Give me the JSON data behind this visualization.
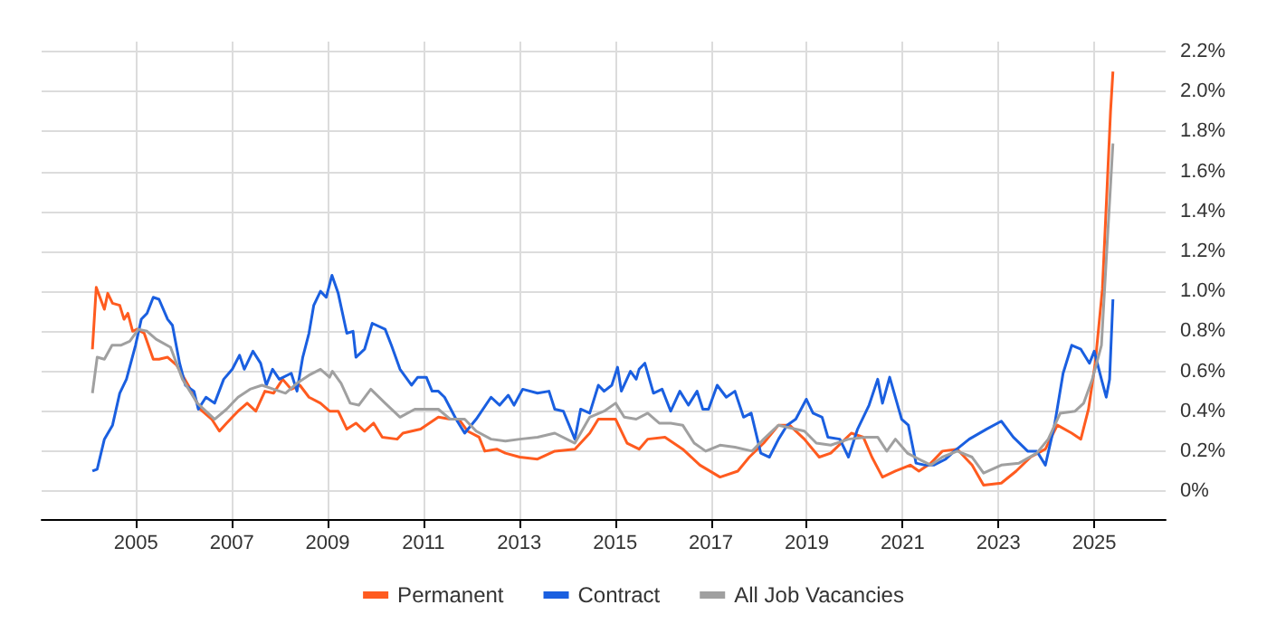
{
  "chart_data": {
    "type": "line",
    "xlim": [
      2003.03,
      2026.49
    ],
    "ylim": [
      -0.14,
      2.25
    ],
    "xticks": [
      2005,
      2007,
      2009,
      2011,
      2013,
      2015,
      2017,
      2019,
      2021,
      2023,
      2025
    ],
    "yticks": [
      {
        "value": 0,
        "label": "0%"
      },
      {
        "value": 0.2,
        "label": "0.2%"
      },
      {
        "value": 0.4,
        "label": "0.4%"
      },
      {
        "value": 0.6,
        "label": "0.6%"
      },
      {
        "value": 0.8,
        "label": "0.8%"
      },
      {
        "value": 1.0,
        "label": "1.0%"
      },
      {
        "value": 1.2,
        "label": "1.2%"
      },
      {
        "value": 1.4,
        "label": "1.4%"
      },
      {
        "value": 1.6,
        "label": "1.6%"
      },
      {
        "value": 1.8,
        "label": "1.8%"
      },
      {
        "value": 2.0,
        "label": "2.0%"
      },
      {
        "value": 2.2,
        "label": "2.2%"
      }
    ],
    "grid": true,
    "legend": "bottom",
    "marker": "none",
    "line_style": "solid",
    "series": [
      {
        "name": "Permanent",
        "color": "#ff5b1f",
        "x": [
          2004.09,
          2004.17,
          2004.34,
          2004.41,
          2004.51,
          2004.66,
          2004.75,
          2004.83,
          2004.93,
          2005.02,
          2005.17,
          2005.36,
          2005.48,
          2005.66,
          2005.85,
          2006.09,
          2006.34,
          2006.58,
          2006.74,
          2006.89,
          2007.01,
          2007.13,
          2007.32,
          2007.5,
          2007.69,
          2007.87,
          2008.06,
          2008.24,
          2008.42,
          2008.61,
          2008.85,
          2009.04,
          2009.22,
          2009.4,
          2009.59,
          2009.77,
          2009.96,
          2010.14,
          2010.45,
          2010.57,
          2010.94,
          2011.31,
          2011.56,
          2011.74,
          2011.92,
          2012.16,
          2012.28,
          2012.53,
          2012.71,
          2013.01,
          2013.38,
          2013.74,
          2014.16,
          2014.47,
          2014.65,
          2015.01,
          2015.25,
          2015.5,
          2015.68,
          2016.04,
          2016.41,
          2016.77,
          2017.19,
          2017.56,
          2017.8,
          2018.1,
          2018.41,
          2018.64,
          2018.95,
          2019.26,
          2019.5,
          2019.93,
          2020.18,
          2020.36,
          2020.58,
          2020.85,
          2021.16,
          2021.34,
          2021.59,
          2021.83,
          2022.14,
          2022.45,
          2022.69,
          2023.06,
          2023.37,
          2023.67,
          2023.98,
          2024.23,
          2024.53,
          2024.72,
          2024.88,
          2025.02,
          2025.17,
          2025.27,
          2025.34,
          2025.39
        ],
        "values": [
          0.71,
          1.02,
          0.91,
          0.99,
          0.94,
          0.93,
          0.86,
          0.89,
          0.8,
          0.81,
          0.79,
          0.66,
          0.66,
          0.67,
          0.63,
          0.53,
          0.41,
          0.36,
          0.3,
          0.34,
          0.37,
          0.4,
          0.44,
          0.4,
          0.5,
          0.49,
          0.56,
          0.51,
          0.53,
          0.47,
          0.44,
          0.4,
          0.4,
          0.31,
          0.34,
          0.3,
          0.34,
          0.27,
          0.26,
          0.29,
          0.31,
          0.37,
          0.36,
          0.36,
          0.3,
          0.27,
          0.2,
          0.21,
          0.19,
          0.17,
          0.16,
          0.2,
          0.21,
          0.29,
          0.36,
          0.36,
          0.24,
          0.21,
          0.26,
          0.27,
          0.21,
          0.13,
          0.07,
          0.1,
          0.17,
          0.24,
          0.33,
          0.33,
          0.26,
          0.17,
          0.19,
          0.29,
          0.27,
          0.17,
          0.07,
          0.1,
          0.13,
          0.1,
          0.14,
          0.2,
          0.21,
          0.13,
          0.03,
          0.04,
          0.1,
          0.17,
          0.21,
          0.33,
          0.29,
          0.26,
          0.41,
          0.64,
          1.01,
          1.53,
          1.9,
          2.1
        ]
      },
      {
        "name": "Contract",
        "color": "#1a5fe0",
        "x": [
          2004.09,
          2004.19,
          2004.34,
          2004.51,
          2004.66,
          2004.8,
          2004.99,
          2005.11,
          2005.23,
          2005.36,
          2005.48,
          2005.66,
          2005.76,
          2005.91,
          2006.03,
          2006.21,
          2006.3,
          2006.46,
          2006.64,
          2006.83,
          2007.01,
          2007.16,
          2007.26,
          2007.44,
          2007.6,
          2007.72,
          2007.85,
          2007.99,
          2008.24,
          2008.36,
          2008.48,
          2008.61,
          2008.71,
          2008.85,
          2008.97,
          2009.09,
          2009.22,
          2009.4,
          2009.53,
          2009.59,
          2009.77,
          2009.93,
          2010.2,
          2010.33,
          2010.51,
          2010.63,
          2010.75,
          2010.88,
          2011.06,
          2011.18,
          2011.31,
          2011.44,
          2011.68,
          2011.86,
          2012.1,
          2012.41,
          2012.59,
          2012.77,
          2012.89,
          2013.07,
          2013.38,
          2013.62,
          2013.74,
          2013.92,
          2014.16,
          2014.28,
          2014.47,
          2014.65,
          2014.77,
          2014.93,
          2015.05,
          2015.13,
          2015.32,
          2015.44,
          2015.5,
          2015.62,
          2015.8,
          2015.98,
          2016.16,
          2016.35,
          2016.53,
          2016.71,
          2016.83,
          2016.95,
          2017.13,
          2017.32,
          2017.5,
          2017.68,
          2017.84,
          2018.04,
          2018.22,
          2018.41,
          2018.59,
          2018.77,
          2018.99,
          2019.13,
          2019.32,
          2019.44,
          2019.69,
          2019.87,
          2020.06,
          2020.3,
          2020.48,
          2020.58,
          2020.73,
          2020.98,
          2021.12,
          2021.28,
          2021.47,
          2021.65,
          2021.9,
          2022.08,
          2022.39,
          2022.75,
          2023.06,
          2023.31,
          2023.61,
          2023.8,
          2023.98,
          2024.17,
          2024.35,
          2024.53,
          2024.72,
          2024.9,
          2025.0,
          2025.15,
          2025.25,
          2025.32,
          2025.39
        ],
        "values": [
          0.1,
          0.11,
          0.26,
          0.33,
          0.49,
          0.56,
          0.73,
          0.86,
          0.89,
          0.97,
          0.96,
          0.86,
          0.83,
          0.64,
          0.53,
          0.5,
          0.41,
          0.47,
          0.44,
          0.56,
          0.61,
          0.68,
          0.61,
          0.7,
          0.64,
          0.53,
          0.61,
          0.56,
          0.59,
          0.5,
          0.67,
          0.79,
          0.93,
          1.0,
          0.97,
          1.08,
          0.99,
          0.79,
          0.8,
          0.67,
          0.71,
          0.84,
          0.81,
          0.73,
          0.61,
          0.57,
          0.53,
          0.57,
          0.57,
          0.5,
          0.5,
          0.47,
          0.36,
          0.29,
          0.36,
          0.47,
          0.43,
          0.48,
          0.43,
          0.51,
          0.49,
          0.5,
          0.41,
          0.4,
          0.26,
          0.41,
          0.39,
          0.53,
          0.5,
          0.53,
          0.62,
          0.5,
          0.6,
          0.56,
          0.61,
          0.64,
          0.49,
          0.51,
          0.4,
          0.5,
          0.43,
          0.5,
          0.41,
          0.41,
          0.53,
          0.47,
          0.5,
          0.37,
          0.39,
          0.19,
          0.17,
          0.26,
          0.33,
          0.36,
          0.46,
          0.39,
          0.37,
          0.27,
          0.26,
          0.17,
          0.31,
          0.43,
          0.56,
          0.44,
          0.57,
          0.36,
          0.33,
          0.14,
          0.13,
          0.13,
          0.16,
          0.2,
          0.26,
          0.31,
          0.35,
          0.27,
          0.2,
          0.2,
          0.13,
          0.33,
          0.59,
          0.73,
          0.71,
          0.64,
          0.7,
          0.56,
          0.47,
          0.56,
          0.96
        ]
      },
      {
        "name": "All Job Vacancies",
        "color": "#a0a0a0",
        "x": [
          2004.09,
          2004.19,
          2004.34,
          2004.5,
          2004.68,
          2004.87,
          2005.05,
          2005.23,
          2005.42,
          2005.72,
          2005.97,
          2006.28,
          2006.64,
          2006.89,
          2007.13,
          2007.38,
          2007.63,
          2007.87,
          2008.12,
          2008.36,
          2008.61,
          2008.85,
          2009.04,
          2009.1,
          2009.28,
          2009.47,
          2009.65,
          2009.9,
          2010.2,
          2010.51,
          2010.82,
          2011.31,
          2011.56,
          2011.86,
          2012.1,
          2012.41,
          2012.71,
          2013.01,
          2013.38,
          2013.74,
          2014.16,
          2014.47,
          2014.77,
          2015.01,
          2015.19,
          2015.44,
          2015.68,
          2015.92,
          2016.16,
          2016.41,
          2016.65,
          2016.89,
          2017.19,
          2017.5,
          2017.86,
          2018.1,
          2018.41,
          2018.95,
          2019.2,
          2019.5,
          2019.87,
          2020.24,
          2020.48,
          2020.67,
          2020.85,
          2021.1,
          2021.34,
          2021.59,
          2021.83,
          2022.14,
          2022.45,
          2022.69,
          2023.06,
          2023.43,
          2023.8,
          2024.04,
          2024.29,
          2024.6,
          2024.78,
          2024.96,
          2025.15,
          2025.27,
          2025.34,
          2025.39
        ],
        "values": [
          0.49,
          0.67,
          0.66,
          0.73,
          0.73,
          0.75,
          0.81,
          0.8,
          0.76,
          0.72,
          0.56,
          0.44,
          0.36,
          0.41,
          0.47,
          0.51,
          0.53,
          0.51,
          0.49,
          0.54,
          0.58,
          0.61,
          0.57,
          0.6,
          0.54,
          0.44,
          0.43,
          0.51,
          0.44,
          0.37,
          0.41,
          0.41,
          0.36,
          0.36,
          0.3,
          0.26,
          0.25,
          0.26,
          0.27,
          0.29,
          0.24,
          0.37,
          0.4,
          0.44,
          0.37,
          0.36,
          0.39,
          0.34,
          0.34,
          0.33,
          0.24,
          0.2,
          0.23,
          0.22,
          0.2,
          0.26,
          0.33,
          0.3,
          0.24,
          0.23,
          0.26,
          0.27,
          0.27,
          0.2,
          0.26,
          0.19,
          0.16,
          0.13,
          0.17,
          0.2,
          0.17,
          0.09,
          0.13,
          0.14,
          0.19,
          0.26,
          0.39,
          0.4,
          0.44,
          0.56,
          0.73,
          1.24,
          1.53,
          1.74
        ]
      }
    ]
  }
}
